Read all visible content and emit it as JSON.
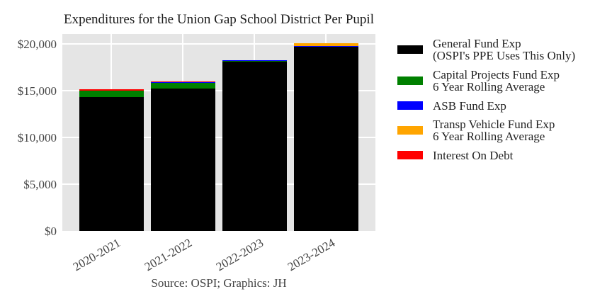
{
  "chart_data": {
    "type": "bar",
    "stacked": true,
    "title": "Expenditures for the Union Gap School District Per Pupil",
    "xlabel": "",
    "ylabel": "",
    "caption": "Source: OSPI; Graphics: JH",
    "categories": [
      "2020-2021",
      "2021-2022",
      "2022-2023",
      "2023-2024"
    ],
    "ylim": [
      0,
      21100
    ],
    "yticks": [
      0,
      5000,
      10000,
      15000,
      20000
    ],
    "ytick_labels": [
      "$0",
      "$5,000",
      "$10,000",
      "$15,000",
      "$20,000"
    ],
    "grid": true,
    "legend_position": "right",
    "series": [
      {
        "name": "General Fund Exp\n(OSPI's PPE Uses This Only)",
        "color": "#000000",
        "values": [
          14300,
          15230,
          18110,
          19700
        ]
      },
      {
        "name": "Capital Projects Fund Exp\n6 Year Rolling Average",
        "color": "#008000",
        "values": [
          700,
          600,
          110,
          0
        ]
      },
      {
        "name": "ASB Fund Exp",
        "color": "#0000ff",
        "values": [
          0,
          75,
          50,
          50
        ]
      },
      {
        "name": "Transp Vehicle Fund Exp\n6 Year Rolling Average",
        "color": "#ffa500",
        "values": [
          0,
          0,
          0,
          300
        ]
      },
      {
        "name": "Interest On Debt",
        "color": "#ff0000",
        "values": [
          130,
          75,
          0,
          0
        ]
      }
    ]
  },
  "title": "Expenditures for the Union Gap School District Per Pupil",
  "caption": "Source: OSPI; Graphics: JH",
  "yticks": [
    "$0",
    "$5,000",
    "$10,000",
    "$15,000",
    "$20,000"
  ],
  "xticks": [
    "2020-2021",
    "2021-2022",
    "2022-2023",
    "2023-2024"
  ],
  "legend": [
    {
      "label": "General Fund Exp\n(OSPI's PPE Uses This Only)",
      "color": "#000000"
    },
    {
      "label": "Capital Projects Fund Exp\n6 Year Rolling Average",
      "color": "#008000"
    },
    {
      "label": "ASB Fund Exp",
      "color": "#0000ff"
    },
    {
      "label": "Transp Vehicle Fund Exp\n6 Year Rolling Average",
      "color": "#ffa500"
    },
    {
      "label": "Interest On Debt",
      "color": "#ff0000"
    }
  ]
}
